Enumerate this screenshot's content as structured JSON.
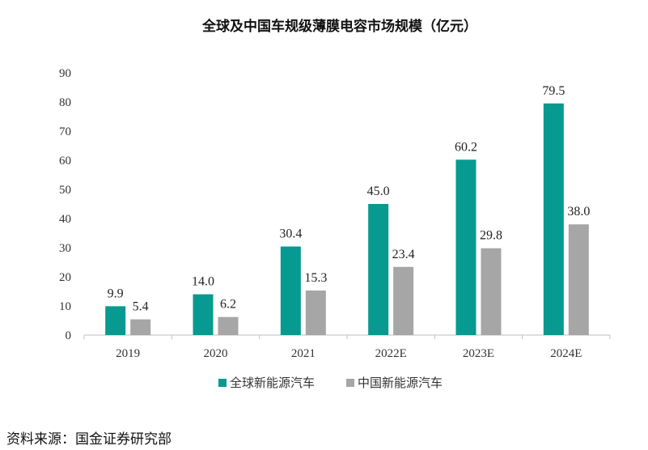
{
  "chart_data": {
    "type": "bar",
    "title": "全球及中国车规级薄膜电容市场规模（亿元）",
    "categories": [
      "2019",
      "2020",
      "2021",
      "2022E",
      "2023E",
      "2024E"
    ],
    "series": [
      {
        "name": "全球新能源汽车",
        "color": "#079a91",
        "values": [
          9.9,
          14.0,
          30.4,
          45.0,
          60.2,
          79.5
        ]
      },
      {
        "name": "中国新能源汽车",
        "color": "#a6a6a6",
        "values": [
          5.4,
          6.2,
          15.3,
          23.4,
          29.8,
          38.0
        ]
      }
    ],
    "ylim": [
      0,
      90
    ],
    "yticks": [
      0,
      10,
      20,
      30,
      40,
      50,
      60,
      70,
      80,
      90
    ],
    "grid": false,
    "legend_position": "bottom-center",
    "xlabel": "",
    "ylabel": ""
  },
  "source_text": "资料来源：国金证券研究部"
}
